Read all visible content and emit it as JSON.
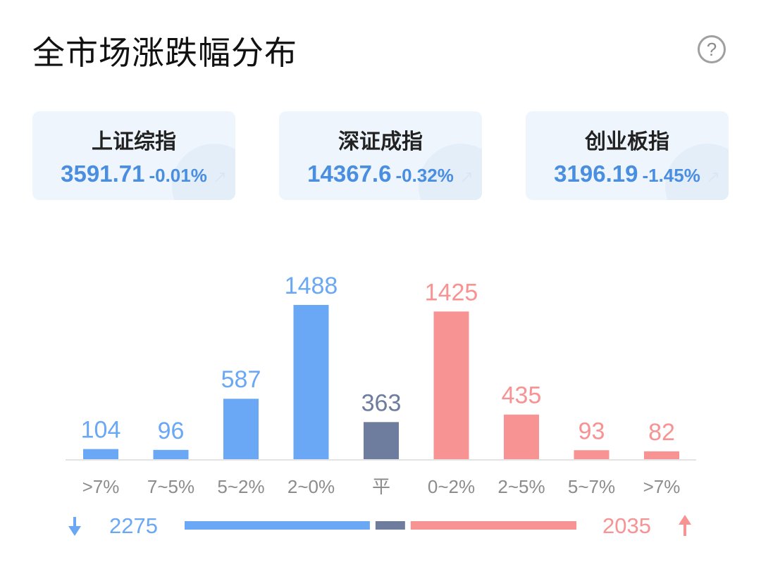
{
  "title": "全市场涨跌幅分布",
  "help_icon": "question-circle-icon",
  "indices": [
    {
      "name": "上证综指",
      "price": "3591.71",
      "change": "-0.01%"
    },
    {
      "name": "深证成指",
      "price": "14367.6",
      "change": "-0.32%"
    },
    {
      "name": "创业板指",
      "price": "3196.19",
      "change": "-1.45%"
    }
  ],
  "colors": {
    "down": "#6aa8f5",
    "flat": "#6e7c9e",
    "up": "#f79392",
    "index_text": "#4a8ee0"
  },
  "chart_data": {
    "type": "bar",
    "categories": [
      ">7%",
      "7~5%",
      "5~2%",
      "2~0%",
      "平",
      "0~2%",
      "2~5%",
      "5~7%",
      ">7%"
    ],
    "values": [
      104,
      96,
      587,
      1488,
      363,
      1425,
      435,
      93,
      82
    ],
    "groups": [
      "down",
      "down",
      "down",
      "down",
      "flat",
      "up",
      "up",
      "up",
      "up"
    ],
    "title": "",
    "xlabel": "",
    "ylabel": "",
    "ylim": [
      0,
      1488
    ],
    "grid": false,
    "summary": {
      "down_total": "2275",
      "up_total": "2035",
      "down_icon": "arrow-down-icon",
      "up_icon": "arrow-up-icon"
    }
  }
}
